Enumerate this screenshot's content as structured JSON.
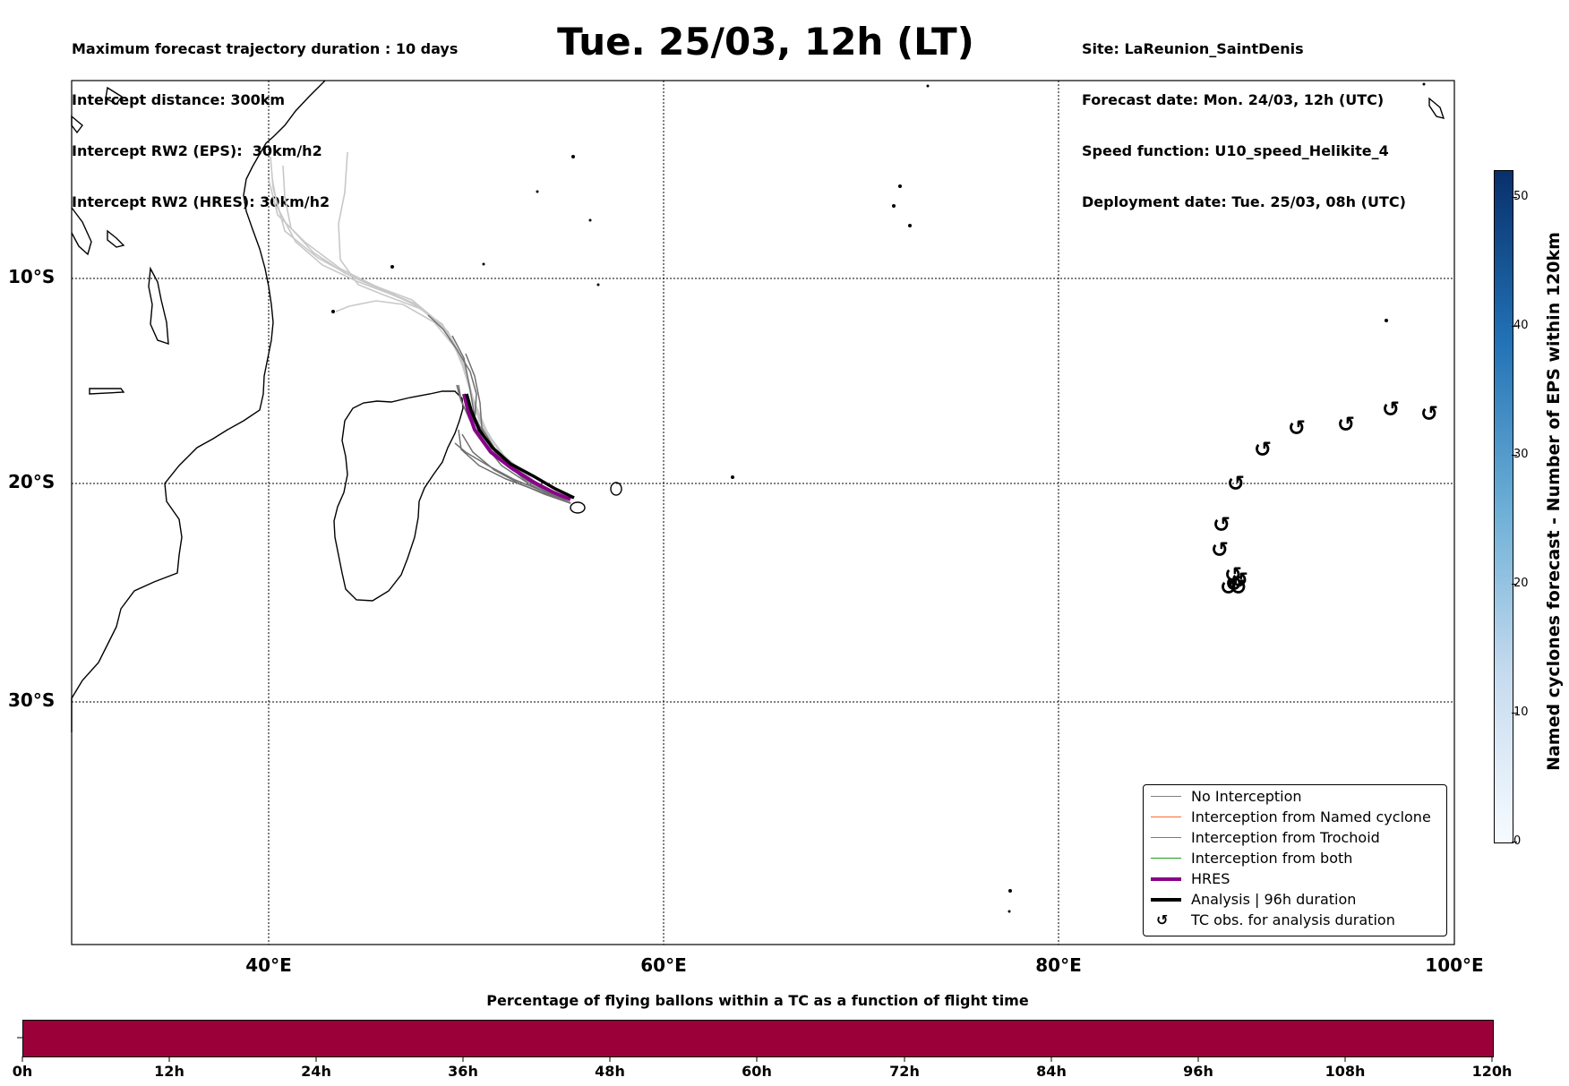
{
  "header": {
    "left_lines": [
      "Maximum forecast trajectory duration : 10 days",
      "Intercept distance: 300km",
      "Intercept RW2 (EPS):  30km/h2",
      "Intercept RW2 (HRES): 30km/h2"
    ],
    "title": "Tue. 25/03, 12h (LT)",
    "right_lines": [
      "Site: LaReunion_SaintDenis",
      "Forecast date: Mon. 24/03, 12h (UTC)",
      "Speed function: U10_speed_Helikite_4",
      "Deployment date: Tue. 25/03, 08h (UTC)"
    ]
  },
  "map": {
    "lat_labels": [
      "10°S",
      "20°S",
      "30°S"
    ],
    "lon_labels": [
      "40°E",
      "60°E",
      "80°E",
      "100°E"
    ],
    "cyclone_symbol": "↺",
    "tc_observations_count": 13
  },
  "legend": {
    "items": [
      {
        "label": "No Interception",
        "color": "#808080",
        "style": "thin"
      },
      {
        "label": "Interception from Named cyclone",
        "color": "#ff6a33",
        "style": "thin"
      },
      {
        "label": "Interception from Trochoid",
        "color": "#8a8a00",
        "style": "thin"
      },
      {
        "label": "Interception from both",
        "color": "#1a9e1a",
        "style": "thin"
      },
      {
        "label": "HRES",
        "color": "#8b008b",
        "style": "thick"
      },
      {
        "label": "Analysis | 96h duration",
        "color": "#000000",
        "style": "thick"
      },
      {
        "label": "TC obs. for analysis duration",
        "color": "#000000",
        "style": "marker"
      }
    ]
  },
  "colorbar_vertical": {
    "title": "Named cyclones forecast - Number of EPS within 120km",
    "ticks": [
      "0",
      "10",
      "20",
      "30",
      "40",
      "50"
    ],
    "range": [
      0,
      52
    ]
  },
  "colorbar_horizontal": {
    "title": "Percentage of flying ballons within a TC as a function of flight time",
    "ticks": [
      "0h",
      "12h",
      "24h",
      "36h",
      "48h",
      "60h",
      "72h",
      "84h",
      "96h",
      "108h",
      "120h"
    ],
    "fill_color": "#9b0039"
  }
}
